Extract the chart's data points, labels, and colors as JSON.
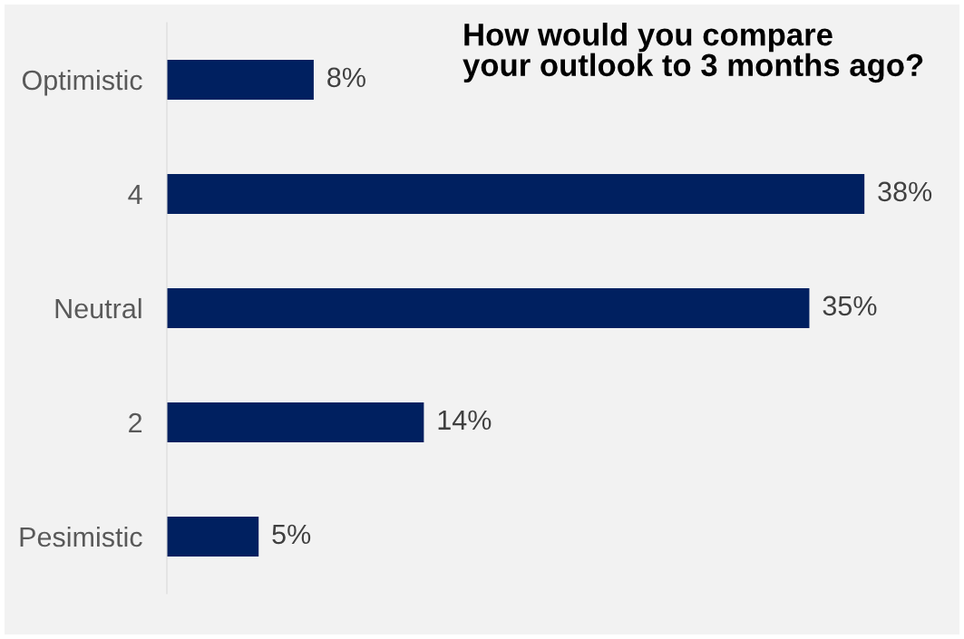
{
  "chart_data": {
    "type": "bar",
    "orientation": "horizontal",
    "title": "How would you compare\nyour outlook to 3 months ago?",
    "categories": [
      "Optimistic",
      "4",
      "Neutral",
      "2",
      "Pesimistic"
    ],
    "values": [
      8,
      38,
      35,
      14,
      5
    ],
    "value_labels": [
      "8%",
      "38%",
      "35%",
      "14%",
      "5%"
    ],
    "color": "#002060",
    "tick_labels": "y",
    "grid": false,
    "legend": false
  }
}
